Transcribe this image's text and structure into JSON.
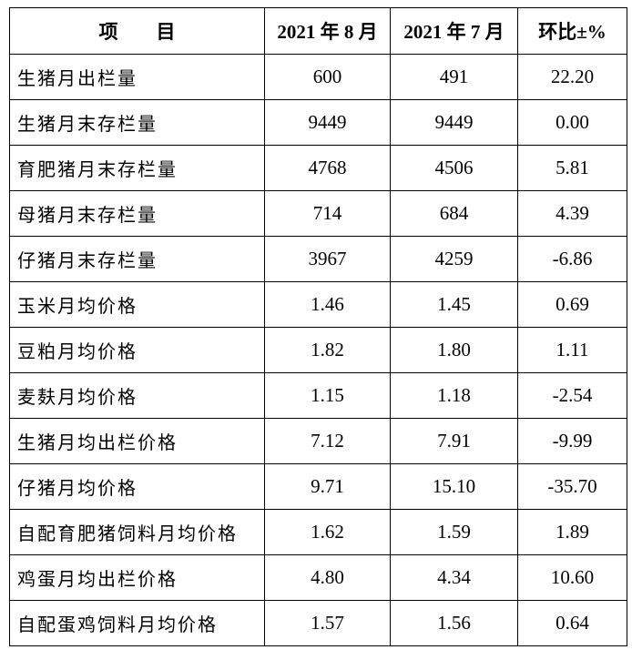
{
  "table": {
    "header": [
      "项　　目",
      "2021 年 8 月",
      "2021 年 7 月",
      "环比±%"
    ],
    "rows": [
      [
        "生猪月出栏量",
        "600",
        "491",
        "22.20"
      ],
      [
        "生猪月末存栏量",
        "9449",
        "9449",
        "0.00"
      ],
      [
        "育肥猪月末存栏量",
        "4768",
        "4506",
        "5.81"
      ],
      [
        "母猪月末存栏量",
        "714",
        "684",
        "4.39"
      ],
      [
        "仔猪月末存栏量",
        "3967",
        "4259",
        "-6.86"
      ],
      [
        "玉米月均价格",
        "1.46",
        "1.45",
        "0.69"
      ],
      [
        "豆粕月均价格",
        "1.82",
        "1.80",
        "1.11"
      ],
      [
        "麦麸月均价格",
        "1.15",
        "1.18",
        "-2.54"
      ],
      [
        "生猪月均出栏价格",
        "7.12",
        "7.91",
        "-9.99"
      ],
      [
        "仔猪月均价格",
        "9.71",
        "15.10",
        "-35.70"
      ],
      [
        "自配育肥猪饲料月均价格",
        "1.62",
        "1.59",
        "1.89"
      ],
      [
        "鸡蛋月均出栏价格",
        "4.80",
        "4.34",
        "10.60"
      ],
      [
        "自配蛋鸡饲料月均价格",
        "1.57",
        "1.56",
        "0.64"
      ]
    ]
  }
}
